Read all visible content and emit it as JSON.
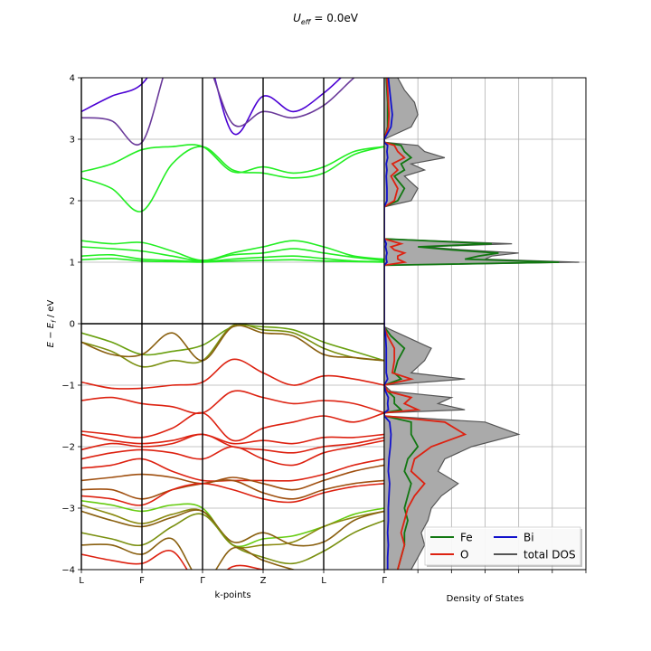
{
  "figure": {
    "title": "U_eff = 0.0eV"
  },
  "chart_data": [
    {
      "type": "line",
      "panel": "band-structure",
      "xlabel": "k-points",
      "ylabel": "E − E_f   /   eV",
      "ylim": [
        -4,
        4
      ],
      "yticks": [
        -4,
        -3,
        -2,
        -1,
        0,
        1,
        2,
        3,
        4
      ],
      "kpoint_labels": [
        "L",
        "F",
        "Γ",
        "Z",
        "L",
        "Γ"
      ],
      "kpoint_positions": [
        0,
        1,
        2,
        3,
        4,
        5
      ],
      "grid": true,
      "fermi_level": 0,
      "bands": [
        {
          "color": "#4b00d4",
          "y": [
            3.45,
            3.7,
            3.9,
            4.6,
            4.6,
            3.1,
            3.7,
            3.45,
            3.75,
            4.2,
            4.6
          ]
        },
        {
          "color": "#6a3a9a",
          "y": [
            3.35,
            3.3,
            2.95,
            4.4,
            4.4,
            3.25,
            3.45,
            3.35,
            3.55,
            4.0,
            4.4
          ]
        },
        {
          "color": "#22ee22",
          "y": [
            2.47,
            2.6,
            2.83,
            2.88,
            2.88,
            2.47,
            2.55,
            2.45,
            2.55,
            2.8,
            2.88
          ]
        },
        {
          "color": "#22ee22",
          "y": [
            2.37,
            2.2,
            1.83,
            2.6,
            2.88,
            2.5,
            2.45,
            2.37,
            2.45,
            2.75,
            2.88
          ]
        },
        {
          "color": "#22ee22",
          "y": [
            1.35,
            1.3,
            1.32,
            1.18,
            1.03,
            1.15,
            1.25,
            1.35,
            1.25,
            1.1,
            1.05
          ]
        },
        {
          "color": "#22ee22",
          "y": [
            1.25,
            1.22,
            1.18,
            1.1,
            1.02,
            1.12,
            1.15,
            1.22,
            1.15,
            1.08,
            1.03
          ]
        },
        {
          "color": "#22ee22",
          "y": [
            1.1,
            1.12,
            1.05,
            1.03,
            1.01,
            1.05,
            1.08,
            1.1,
            1.06,
            1.02,
            1.01
          ]
        },
        {
          "color": "#22ee22",
          "y": [
            1.04,
            1.06,
            1.02,
            1.01,
            1.0,
            1.02,
            1.03,
            1.04,
            1.02,
            1.01,
            1.0
          ]
        },
        {
          "color": "#6aa010",
          "y": [
            -0.15,
            -0.3,
            -0.5,
            -0.45,
            -0.35,
            -0.05,
            -0.05,
            -0.1,
            -0.3,
            -0.45,
            -0.6
          ]
        },
        {
          "color": "#7a9010",
          "y": [
            -0.3,
            -0.45,
            -0.7,
            -0.6,
            -0.6,
            -0.03,
            -0.1,
            -0.15,
            -0.4,
            -0.55,
            -0.6
          ]
        },
        {
          "color": "#8a6010",
          "y": [
            -0.3,
            -0.5,
            -0.5,
            -0.15,
            -0.6,
            -0.05,
            -0.15,
            -0.2,
            -0.5,
            -0.55,
            -0.6
          ]
        },
        {
          "color": "#dd2211",
          "y": [
            -0.95,
            -1.05,
            -1.05,
            -1.0,
            -0.95,
            -0.58,
            -0.8,
            -1.0,
            -0.85,
            -0.9,
            -1.0
          ]
        },
        {
          "color": "#dd2211",
          "y": [
            -1.25,
            -1.2,
            -1.3,
            -1.35,
            -1.45,
            -1.1,
            -1.2,
            -1.3,
            -1.25,
            -1.3,
            -1.45
          ]
        },
        {
          "color": "#dd2211",
          "y": [
            -1.75,
            -1.8,
            -1.85,
            -1.7,
            -1.45,
            -1.9,
            -1.7,
            -1.6,
            -1.5,
            -1.6,
            -1.45
          ]
        },
        {
          "color": "#dd2211",
          "y": [
            -1.8,
            -1.9,
            -1.95,
            -1.9,
            -1.8,
            -1.95,
            -1.9,
            -1.95,
            -1.85,
            -1.85,
            -1.8
          ]
        },
        {
          "color": "#dd2211",
          "y": [
            -2.05,
            -1.95,
            -2.0,
            -1.95,
            -1.8,
            -2.0,
            -2.05,
            -2.1,
            -2.0,
            -1.95,
            -1.85
          ]
        },
        {
          "color": "#dd2211",
          "y": [
            -2.2,
            -2.1,
            -2.05,
            -2.1,
            -2.2,
            -2.0,
            -2.2,
            -2.3,
            -2.1,
            -2.0,
            -1.9
          ]
        },
        {
          "color": "#dd2211",
          "y": [
            -2.35,
            -2.3,
            -2.2,
            -2.4,
            -2.55,
            -2.55,
            -2.55,
            -2.55,
            -2.45,
            -2.3,
            -2.2
          ]
        },
        {
          "color": "#a05010",
          "y": [
            -2.55,
            -2.5,
            -2.45,
            -2.5,
            -2.6,
            -2.5,
            -2.6,
            -2.7,
            -2.55,
            -2.4,
            -2.3
          ]
        },
        {
          "color": "#a05010",
          "y": [
            -2.7,
            -2.7,
            -2.85,
            -2.7,
            -2.6,
            -2.55,
            -2.75,
            -2.85,
            -2.7,
            -2.6,
            -2.55
          ]
        },
        {
          "color": "#dd2211",
          "y": [
            -2.8,
            -2.85,
            -2.95,
            -2.7,
            -2.6,
            -2.7,
            -2.85,
            -2.9,
            -2.75,
            -2.65,
            -2.6
          ]
        },
        {
          "color": "#66cc11",
          "y": [
            -2.88,
            -2.95,
            -3.05,
            -2.95,
            -3.0,
            -3.6,
            -3.5,
            -3.45,
            -3.3,
            -3.1,
            -3.0
          ]
        },
        {
          "color": "#8a8a10",
          "y": [
            -2.95,
            -3.1,
            -3.25,
            -3.1,
            -3.05,
            -3.6,
            -3.6,
            -3.55,
            -3.3,
            -3.15,
            -3.05
          ]
        },
        {
          "color": "#8a6010",
          "y": [
            -3.05,
            -3.2,
            -3.3,
            -3.15,
            -3.05,
            -3.55,
            -3.4,
            -3.6,
            -3.55,
            -3.2,
            -3.05
          ]
        },
        {
          "color": "#7a9010",
          "y": [
            -3.4,
            -3.5,
            -3.6,
            -3.3,
            -3.1,
            -3.6,
            -3.8,
            -3.9,
            -3.7,
            -3.4,
            -3.2
          ]
        },
        {
          "color": "#8a6010",
          "y": [
            -3.6,
            -3.6,
            -3.75,
            -3.5,
            -4.2,
            -3.65,
            -3.85,
            -4.0,
            -4.1,
            -4.2,
            -4.2
          ]
        },
        {
          "color": "#dd2211",
          "y": [
            -3.75,
            -3.85,
            -3.9,
            -3.7,
            -4.3,
            -3.95,
            -4.0,
            -4.1,
            -4.2,
            -4.3,
            -4.3
          ]
        }
      ]
    },
    {
      "type": "area",
      "panel": "density-of-states",
      "xlabel": "Density of States",
      "ylim": [
        -4,
        4
      ],
      "grid": true,
      "legend_position": "lower-right",
      "energy": [
        -4.0,
        -3.8,
        -3.6,
        -3.4,
        -3.2,
        -3.0,
        -2.8,
        -2.6,
        -2.4,
        -2.2,
        -2.0,
        -1.8,
        -1.6,
        -1.5,
        -1.45,
        -1.4,
        -1.3,
        -1.2,
        -1.1,
        -1.0,
        -0.9,
        -0.8,
        -0.6,
        -0.4,
        -0.2,
        -0.05,
        0.0,
        0.95,
        1.0,
        1.05,
        1.1,
        1.15,
        1.2,
        1.25,
        1.3,
        1.38,
        1.9,
        2.0,
        2.2,
        2.4,
        2.5,
        2.6,
        2.7,
        2.8,
        2.9,
        2.95,
        3.0,
        3.2,
        3.4,
        3.6,
        3.8,
        4.0
      ],
      "series": [
        {
          "name": "total DOS",
          "color": "#555555",
          "fill": "#aaaaaa",
          "values": [
            0.4,
            0.5,
            0.6,
            0.55,
            0.65,
            0.7,
            0.85,
            1.1,
            0.8,
            0.9,
            1.3,
            2.0,
            1.5,
            0.0,
            0.0,
            1.2,
            0.8,
            1.0,
            0.1,
            0.0,
            1.2,
            0.4,
            0.6,
            0.7,
            0.3,
            0.0,
            0.0,
            0.0,
            2.9,
            1.5,
            1.6,
            2.0,
            1.2,
            0.6,
            1.9,
            0.0,
            0.0,
            0.4,
            0.5,
            0.3,
            0.6,
            0.4,
            0.9,
            0.6,
            0.5,
            0.0,
            0.0,
            0.4,
            0.5,
            0.45,
            0.3,
            0.2
          ]
        },
        {
          "name": "Fe",
          "color": "#117711",
          "values": [
            0.2,
            0.25,
            0.3,
            0.3,
            0.35,
            0.3,
            0.35,
            0.4,
            0.3,
            0.35,
            0.5,
            0.4,
            0.4,
            0.0,
            0.0,
            0.25,
            0.15,
            0.15,
            0.05,
            0.0,
            0.25,
            0.15,
            0.2,
            0.3,
            0.1,
            0.0,
            0.0,
            0.0,
            2.6,
            1.2,
            1.4,
            1.7,
            1.0,
            0.5,
            1.6,
            0.0,
            0.0,
            0.2,
            0.3,
            0.15,
            0.3,
            0.25,
            0.4,
            0.3,
            0.25,
            0.0,
            0.0,
            0.05,
            0.05,
            0.05,
            0.04,
            0.03
          ]
        },
        {
          "name": "O",
          "color": "#dd2211",
          "values": [
            0.2,
            0.25,
            0.3,
            0.25,
            0.3,
            0.35,
            0.45,
            0.6,
            0.4,
            0.45,
            0.7,
            1.2,
            0.9,
            0.0,
            0.0,
            0.5,
            0.3,
            0.4,
            0.05,
            0.0,
            0.4,
            0.12,
            0.15,
            0.15,
            0.05,
            0.0,
            0.0,
            0.0,
            0.3,
            0.2,
            0.2,
            0.3,
            0.15,
            0.1,
            0.25,
            0.0,
            0.0,
            0.15,
            0.2,
            0.1,
            0.2,
            0.12,
            0.3,
            0.2,
            0.15,
            0.0,
            0.0,
            0.06,
            0.07,
            0.06,
            0.05,
            0.04
          ]
        },
        {
          "name": "Bi",
          "color": "#1111cc",
          "values": [
            0.05,
            0.05,
            0.06,
            0.05,
            0.06,
            0.06,
            0.07,
            0.08,
            0.06,
            0.07,
            0.09,
            0.1,
            0.08,
            0.0,
            0.0,
            0.06,
            0.05,
            0.06,
            0.02,
            0.0,
            0.05,
            0.03,
            0.03,
            0.03,
            0.02,
            0.0,
            0.0,
            0.0,
            0.04,
            0.03,
            0.03,
            0.04,
            0.03,
            0.02,
            0.03,
            0.0,
            0.0,
            0.04,
            0.04,
            0.03,
            0.04,
            0.03,
            0.05,
            0.04,
            0.05,
            0.0,
            0.0,
            0.1,
            0.12,
            0.1,
            0.08,
            0.06
          ]
        }
      ],
      "legend": {
        "entries": [
          {
            "label": "Fe",
            "color": "#117711"
          },
          {
            "label": "O",
            "color": "#dd2211"
          },
          {
            "label": "Bi",
            "color": "#1111cc"
          },
          {
            "label": "total DOS",
            "color": "#555555"
          }
        ]
      }
    }
  ],
  "colors": {
    "grid": "#b0b0b0",
    "axis": "#000000"
  }
}
